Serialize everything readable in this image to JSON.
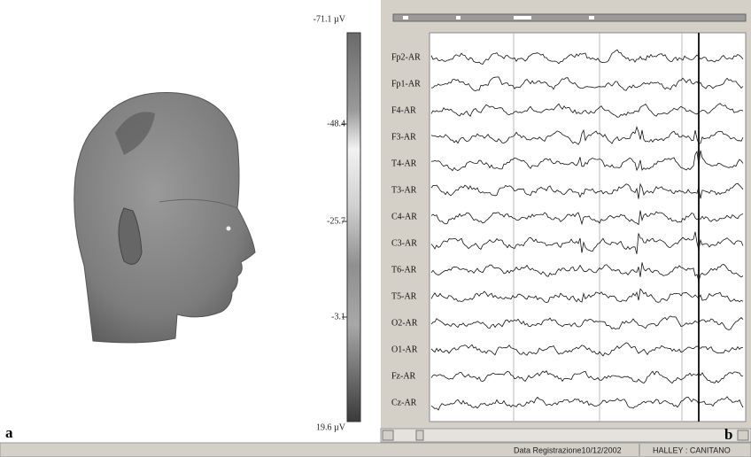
{
  "color_scale": {
    "labels": [
      "-71.1 µV",
      "-48.4",
      "-25.7",
      "-3.1",
      "19.6 µV"
    ]
  },
  "channels": [
    "Fp2-AR",
    "Fp1-AR",
    "F4-AR",
    "F3-AR",
    "T4-AR",
    "T3-AR",
    "C4-AR",
    "C3-AR",
    "T6-AR",
    "T5-AR",
    "O2-AR",
    "O1-AR",
    "Fz-AR",
    "Cz-AR"
  ],
  "panel_labels": {
    "left": "a",
    "right": "b"
  },
  "status_bar": {
    "date": "Data Registrazione10/12/2002",
    "patient": "HALLEY : CANITANO"
  }
}
